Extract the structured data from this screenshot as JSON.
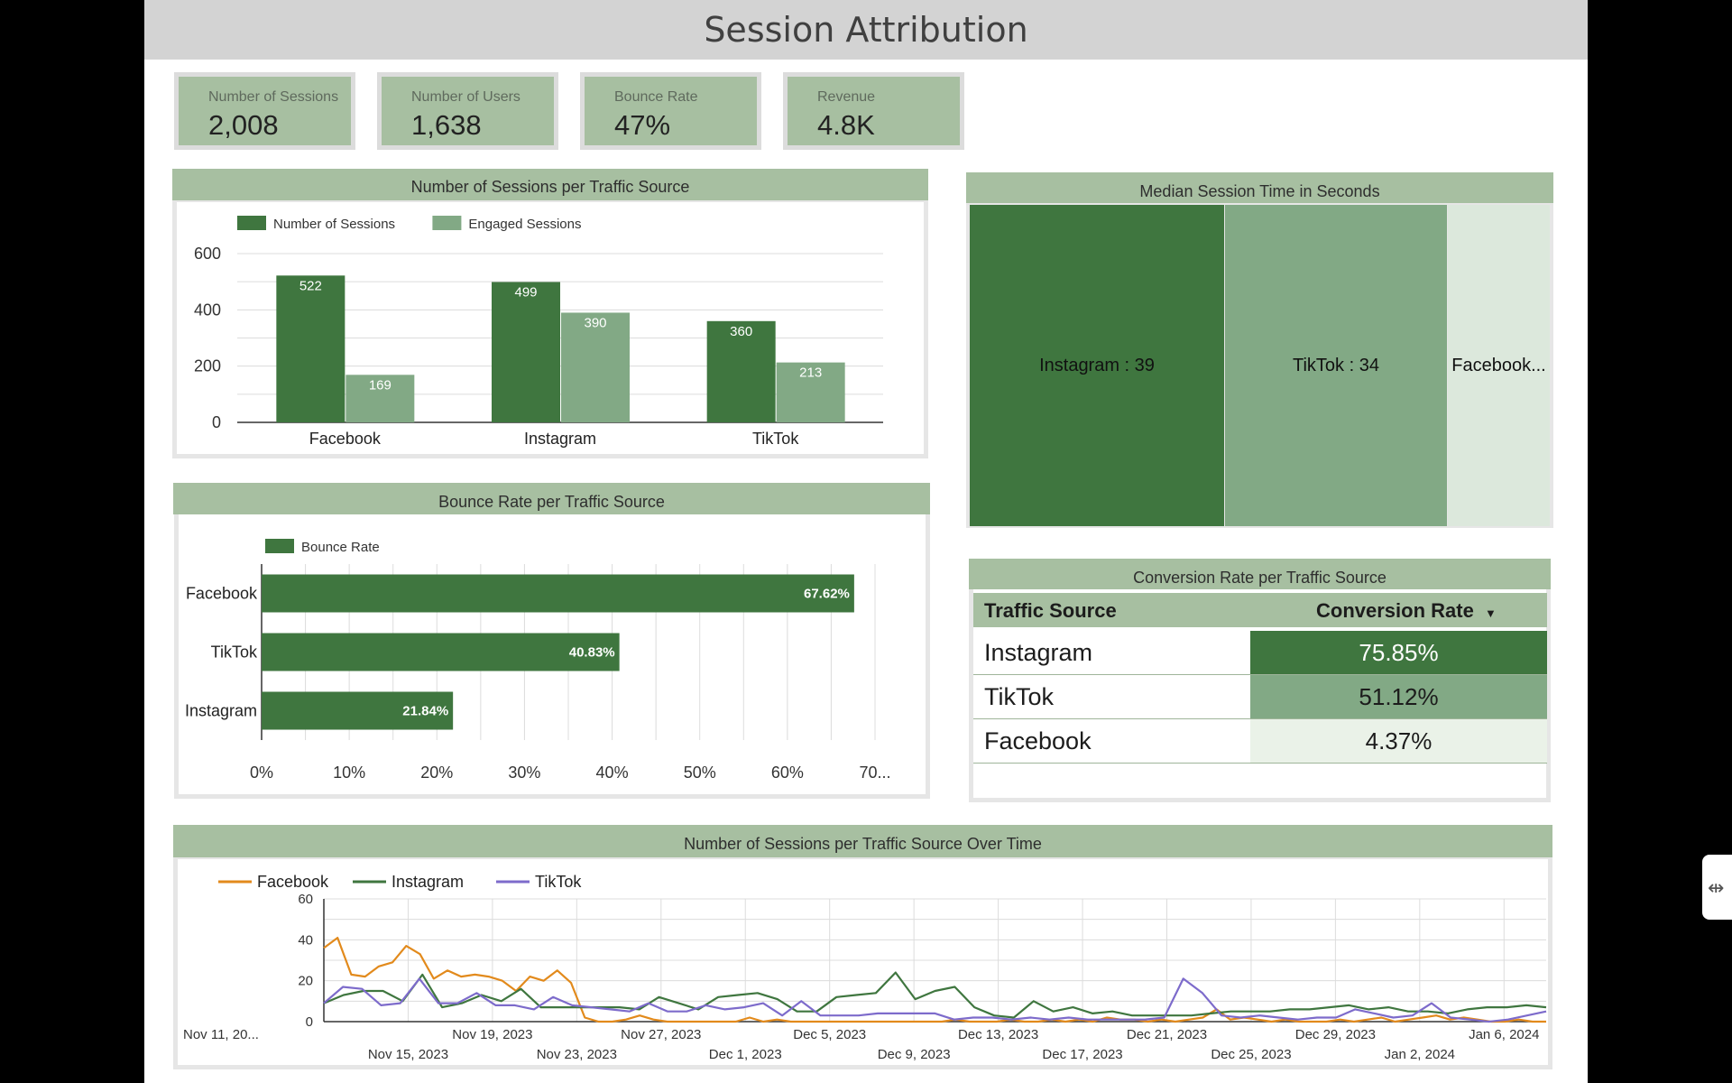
{
  "title": "Session Attribution",
  "colors": {
    "dark": "#3f763f",
    "medium": "#82a985",
    "light": "#dce8dc",
    "header": "#a7bfa1",
    "facebook": "#e28a1c",
    "instagram": "#3f763f",
    "tiktok": "#7d6bcb"
  },
  "kpis": [
    {
      "label": "Number of Sessions",
      "value": "2,008"
    },
    {
      "label": "Number of Users",
      "value": "1,638"
    },
    {
      "label": "Bounce Rate",
      "value": "47%"
    },
    {
      "label": "Revenue",
      "value": "4.8K"
    }
  ],
  "side_handle_icon": "collapse-arrows-icon",
  "chart_data": [
    {
      "type": "bar",
      "title": "Number of Sessions per Traffic Source",
      "categories": [
        "Facebook",
        "Instagram",
        "TikTok"
      ],
      "series": [
        {
          "name": "Number of Sessions",
          "values": [
            522,
            499,
            360
          ]
        },
        {
          "name": "Engaged Sessions",
          "values": [
            169,
            390,
            213
          ]
        }
      ],
      "ylim": [
        0,
        600
      ],
      "yticks": [
        "0",
        "200",
        "400",
        "600"
      ],
      "legend": "top-left",
      "grid": true
    },
    {
      "type": "bar",
      "orientation": "horizontal",
      "title": "Bounce Rate per Traffic Source",
      "categories": [
        "Facebook",
        "TikTok",
        "Instagram"
      ],
      "series": [
        {
          "name": "Bounce Rate",
          "values": [
            67.62,
            40.83,
            21.84
          ],
          "labels": [
            "67.62%",
            "40.83%",
            "21.84%"
          ]
        }
      ],
      "xlim": [
        0,
        70
      ],
      "xticks": [
        "0%",
        "10%",
        "20%",
        "30%",
        "40%",
        "50%",
        "60%",
        "70..."
      ],
      "legend": "top-left",
      "grid": true
    },
    {
      "type": "treemap",
      "title": "Median Session Time in Seconds",
      "items": [
        {
          "label": "Instagram : 39",
          "value": 39
        },
        {
          "label": "TikTok : 34",
          "value": 34
        },
        {
          "label": "Facebook...",
          "value": 17
        }
      ]
    },
    {
      "type": "table",
      "title": "Conversion Rate per Traffic Source",
      "columns": [
        "Traffic Source",
        "Conversion Rate"
      ],
      "sort_indicator": "▼",
      "rows": [
        {
          "source": "Instagram",
          "rate": "75.85%",
          "value": 75.85
        },
        {
          "source": "TikTok",
          "rate": "51.12%",
          "value": 51.12
        },
        {
          "source": "Facebook",
          "rate": "4.37%",
          "value": 4.37
        }
      ]
    },
    {
      "type": "line",
      "title": "Number of Sessions per Traffic Source Over Time",
      "x_start": "2023-11-11",
      "x_end": "2024-01-08",
      "ylim": [
        0,
        60
      ],
      "yticks": [
        "0",
        "20",
        "40",
        "60"
      ],
      "xtick_labels_row1": [
        "Nov 11, 20...",
        "Nov 19, 2023",
        "Nov 27, 2023",
        "Dec 5, 2023",
        "Dec 13, 2023",
        "Dec 21, 2023",
        "Dec 29, 2023",
        "Jan 6, 2024"
      ],
      "xtick_labels_row2": [
        "Nov 15, 2023",
        "Nov 23, 2023",
        "Dec 1, 2023",
        "Dec 9, 2023",
        "Dec 17, 2023",
        "Dec 25, 2023",
        "Jan 2, 2024"
      ],
      "legend": "top-left",
      "grid": true,
      "series": [
        {
          "name": "Facebook",
          "values": [
            36,
            41,
            23,
            22,
            27,
            29,
            37,
            33,
            21,
            25,
            22,
            23,
            22,
            20,
            15,
            22,
            20,
            25,
            19,
            2,
            0,
            0,
            1,
            3,
            1,
            0,
            0,
            0,
            0,
            0,
            0,
            2,
            0,
            1,
            0,
            0,
            0,
            0,
            0,
            0,
            0,
            0,
            0,
            0,
            0,
            0,
            1,
            0,
            0,
            0,
            1,
            0,
            0,
            1,
            0,
            1,
            0,
            2,
            1,
            1,
            0,
            1,
            0,
            1,
            2,
            6,
            1,
            2,
            1,
            0,
            1,
            0,
            0,
            0,
            1,
            0,
            1,
            2,
            0,
            1,
            2,
            3,
            1,
            2,
            1,
            0,
            0,
            1,
            0,
            0
          ]
        },
        {
          "name": "Instagram",
          "values": [
            9,
            13,
            15,
            15,
            10,
            23,
            7,
            9,
            13,
            10,
            16,
            7,
            7,
            7,
            7,
            7,
            6,
            12,
            9,
            6,
            12,
            13,
            14,
            11,
            5,
            5,
            12,
            13,
            14,
            24,
            11,
            15,
            17,
            7,
            3,
            2,
            10,
            5,
            7,
            4,
            5,
            3,
            3,
            3,
            3,
            4,
            5,
            5,
            5,
            6,
            6,
            7,
            8,
            6,
            7,
            5,
            5,
            4,
            6,
            7,
            7,
            8,
            7
          ]
        },
        {
          "name": "TikTok",
          "values": [
            9,
            17,
            16,
            8,
            9,
            21,
            9,
            9,
            14,
            8,
            8,
            6,
            12,
            8,
            7,
            6,
            5,
            9,
            5,
            5,
            8,
            6,
            7,
            9,
            3,
            10,
            3,
            3,
            3,
            4,
            4,
            4,
            4,
            1,
            2,
            2,
            1,
            2,
            1,
            2,
            1,
            1,
            1,
            1,
            2,
            21,
            14,
            3,
            2,
            3,
            2,
            1,
            2,
            2,
            6,
            4,
            2,
            3,
            9,
            2,
            1,
            0,
            1,
            3,
            5
          ]
        }
      ]
    }
  ]
}
